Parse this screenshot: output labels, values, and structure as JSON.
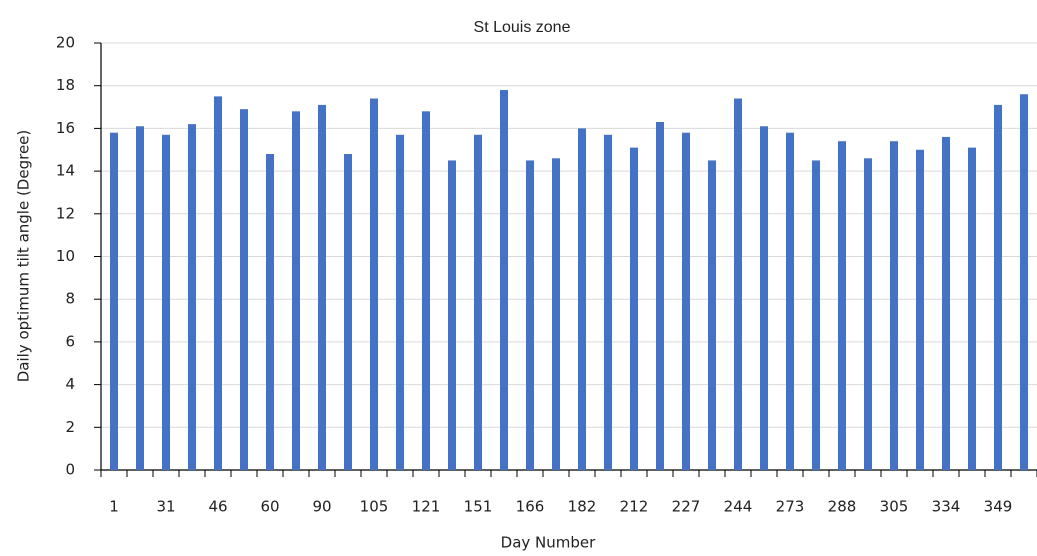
{
  "chart_data": {
    "type": "bar",
    "title": "St Louis zone",
    "x_label": "Day Number",
    "y_label": "Daily optimum tilt angle (Degree)",
    "categories": [
      "1",
      null,
      "31",
      null,
      "46",
      null,
      "60",
      null,
      "90",
      null,
      "105",
      null,
      "121",
      null,
      "151",
      null,
      "166",
      null,
      "182",
      null,
      "212",
      null,
      "227",
      null,
      "244",
      null,
      "273",
      null,
      "288",
      null,
      "305",
      null,
      "334",
      null,
      "349",
      null
    ],
    "values": [
      15.8,
      16.1,
      15.7,
      16.2,
      17.5,
      16.9,
      14.8,
      16.8,
      17.1,
      14.8,
      17.4,
      15.7,
      16.8,
      14.5,
      15.7,
      17.8,
      14.5,
      14.6,
      16.0,
      15.7,
      15.1,
      16.3,
      15.8,
      14.5,
      17.4,
      16.1,
      15.8,
      14.5,
      15.4,
      14.6,
      15.4,
      15.0,
      15.6,
      15.1,
      17.1,
      17.6
    ],
    "color": "#4472c4",
    "ylim": [
      0,
      20
    ],
    "yticks": [
      0,
      2,
      4,
      6,
      8,
      10,
      12,
      14,
      16,
      18,
      20
    ],
    "grid": true
  }
}
